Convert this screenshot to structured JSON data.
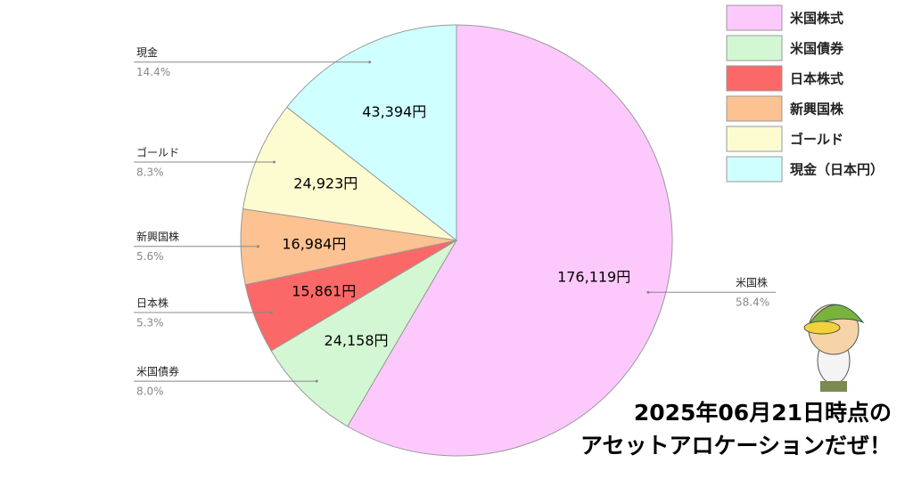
{
  "chart_data": {
    "type": "pie",
    "categories": [
      "米国株",
      "米国債券",
      "日本株",
      "新興国株",
      "ゴールド",
      "現金"
    ],
    "values": [
      176119,
      24158,
      15861,
      16984,
      24923,
      43394
    ],
    "value_labels": [
      "176,119円",
      "24,158円",
      "15,861円",
      "16,984円",
      "24,923円",
      "43,394円"
    ],
    "percentages": [
      58.4,
      8.0,
      5.3,
      5.6,
      8.3,
      14.4
    ],
    "percentage_labels": [
      "58.4%",
      "8.0%",
      "5.3%",
      "5.6%",
      "8.3%",
      "14.4%"
    ],
    "legend_labels": [
      "米国株式",
      "米国債券",
      "日本株式",
      "新興国株",
      "ゴールド",
      "現金（日本円）"
    ],
    "colors": [
      "#fdc9fd",
      "#d3f7d3",
      "#fb6868",
      "#fcc291",
      "#fdfcd1",
      "#cfffff"
    ],
    "legend_position": "top-right",
    "annotation": [
      "2025年06月21日時点の",
      "アセットアロケーションだぜ！"
    ]
  }
}
